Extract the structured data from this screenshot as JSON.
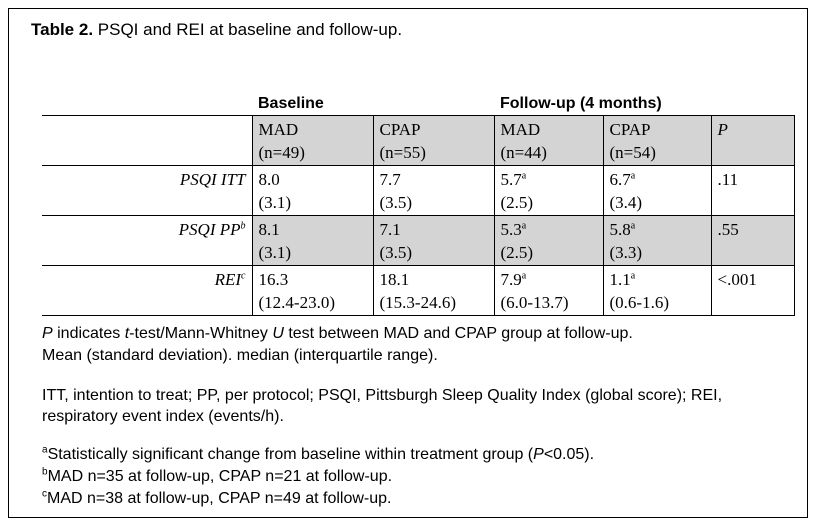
{
  "caption": {
    "label": "Table 2.",
    "text": " PSQI and REI at baseline and follow-up."
  },
  "groups": {
    "baseline": "Baseline",
    "followup": "Follow-up (4 months)"
  },
  "columns": {
    "b_mad": [
      "MAD",
      "(n=49)"
    ],
    "b_cpap": [
      "CPAP",
      "(n=55)"
    ],
    "f_mad": [
      "MAD",
      "(n=44)"
    ],
    "f_cpap": [
      "CPAP",
      "(n=54)"
    ],
    "p": "P"
  },
  "rows": [
    {
      "label": "PSQI ITT",
      "sup": "",
      "b_mad": [
        "8.0",
        "(3.1)"
      ],
      "b_cpap": [
        "7.7",
        "(3.5)"
      ],
      "f_mad": [
        "5.7",
        "(2.5)"
      ],
      "f_mad_sup": "a",
      "f_cpap": [
        "6.7",
        "(3.4)"
      ],
      "f_cpap_sup": "a",
      "p": ".11"
    },
    {
      "label": "PSQI PP",
      "sup": "b",
      "b_mad": [
        "8.1",
        "(3.1)"
      ],
      "b_cpap": [
        "7.1",
        "(3.5)"
      ],
      "f_mad": [
        "5.3",
        "(2.5)"
      ],
      "f_mad_sup": "a",
      "f_cpap": [
        "5.8",
        "(3.3)"
      ],
      "f_cpap_sup": "a",
      "p": ".55"
    },
    {
      "label": "REI",
      "sup": "c",
      "b_mad": [
        "16.3",
        "(12.4-23.0)"
      ],
      "b_cpap": [
        "18.1",
        "(15.3-24.6)"
      ],
      "f_mad": [
        "7.9",
        "(6.0-13.7)"
      ],
      "f_mad_sup": "a",
      "f_cpap": [
        "1.1",
        "(0.6-1.6)"
      ],
      "f_cpap_sup": "a",
      "p": "<.001"
    }
  ],
  "notes": {
    "n1_p": "P",
    "n1_a": " indicates ",
    "n1_t": "t",
    "n1_b": "-test/Mann-Whitney ",
    "n1_u": "U",
    "n1_c": " test between MAD and CPAP group at follow-up.",
    "n2": "Mean (standard deviation). median (interquartile range).",
    "n3": "ITT, intention to treat; PP, per protocol; PSQI, Pittsburgh Sleep Quality Index (global score); REI, respiratory event index (events/h).",
    "fa_sup": "a",
    "fa_text_1": "Statistically significant change from baseline within treatment group (",
    "fa_p": "P",
    "fa_text_2": "<0.05).",
    "fb_sup": "b",
    "fb_text": "MAD n=35 at follow-up, CPAP n=21 at follow-up.",
    "fc_sup": "c",
    "fc_text": "MAD n=38 at follow-up, CPAP n=49 at follow-up."
  }
}
